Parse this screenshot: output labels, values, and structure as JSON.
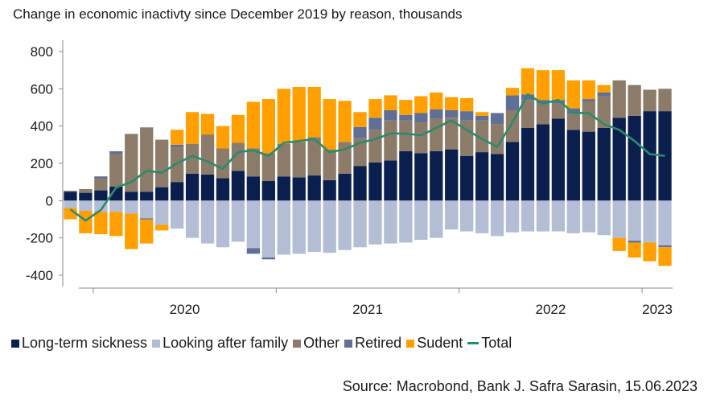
{
  "chart_data": {
    "type": "bar",
    "stacked": true,
    "title": "Change in economic inactivty since December 2019 by reason, thousands",
    "xlabel": "",
    "ylabel": "",
    "ylim": [
      -400,
      800
    ],
    "yticks": [
      -400,
      -200,
      0,
      200,
      400,
      600,
      800
    ],
    "x_year_labels": [
      "2020",
      "2021",
      "2022",
      "2023"
    ],
    "x_year_label_index": [
      8,
      20,
      32,
      39
    ],
    "x_tick_index": [
      2,
      14,
      26,
      38
    ],
    "grid": false,
    "legend_position": "bottom",
    "series": [
      {
        "name": "Long-term sickness",
        "color": "#0b1f4f",
        "values": [
          48,
          42,
          55,
          75,
          48,
          48,
          72,
          100,
          145,
          140,
          120,
          160,
          130,
          105,
          130,
          125,
          135,
          110,
          145,
          185,
          205,
          215,
          265,
          255,
          265,
          275,
          240,
          260,
          250,
          315,
          390,
          410,
          440,
          380,
          370,
          390,
          445,
          455,
          480,
          480
        ]
      },
      {
        "name": "Looking after family",
        "color": "#b3bdd3",
        "values": [
          -40,
          -55,
          -60,
          -60,
          -70,
          -95,
          -130,
          -150,
          -200,
          -230,
          -250,
          -220,
          -255,
          -305,
          -290,
          -285,
          -275,
          -280,
          -265,
          -250,
          -235,
          -230,
          -225,
          -210,
          -200,
          -155,
          -165,
          -175,
          -190,
          -170,
          -165,
          -165,
          -165,
          -175,
          -170,
          -185,
          -200,
          -215,
          -225,
          -240
        ]
      },
      {
        "name": "Other",
        "color": "#8c7b68",
        "values": [
          5,
          20,
          65,
          175,
          310,
          345,
          255,
          185,
          160,
          215,
          160,
          150,
          150,
          150,
          175,
          190,
          205,
          165,
          170,
          150,
          175,
          215,
          165,
          165,
          175,
          170,
          190,
          170,
          160,
          170,
          150,
          110,
          80,
          85,
          160,
          170,
          200,
          165,
          115,
          120
        ]
      },
      {
        "name": "Retired",
        "color": "#5f6f96",
        "values": [
          0,
          0,
          10,
          15,
          0,
          -5,
          0,
          15,
          0,
          0,
          0,
          0,
          -30,
          -10,
          0,
          0,
          0,
          0,
          0,
          60,
          65,
          55,
          30,
          50,
          50,
          40,
          50,
          25,
          60,
          80,
          30,
          20,
          20,
          30,
          15,
          20,
          0,
          -10,
          0,
          -10
        ]
      },
      {
        "name": "Sudent",
        "color": "#ff9f00",
        "values": [
          -60,
          -120,
          -120,
          -130,
          -190,
          -130,
          -30,
          80,
          170,
          110,
          120,
          150,
          250,
          290,
          295,
          295,
          270,
          270,
          220,
          80,
          100,
          80,
          80,
          90,
          90,
          70,
          70,
          20,
          0,
          40,
          140,
          160,
          160,
          150,
          100,
          40,
          -70,
          -80,
          -100,
          -100
        ]
      },
      {
        "name": "Total",
        "color": "#2a8a6e",
        "type": "line",
        "values": [
          -47,
          -107,
          -50,
          70,
          100,
          160,
          150,
          200,
          240,
          210,
          170,
          260,
          270,
          240,
          310,
          320,
          330,
          260,
          275,
          310,
          330,
          360,
          360,
          350,
          390,
          430,
          380,
          330,
          290,
          420,
          570,
          520,
          540,
          470,
          470,
          410,
          380,
          320,
          250,
          240
        ]
      }
    ]
  },
  "source_text": "Source: Macrobond, Bank J. Safra Sarasin, 15.06.2023"
}
